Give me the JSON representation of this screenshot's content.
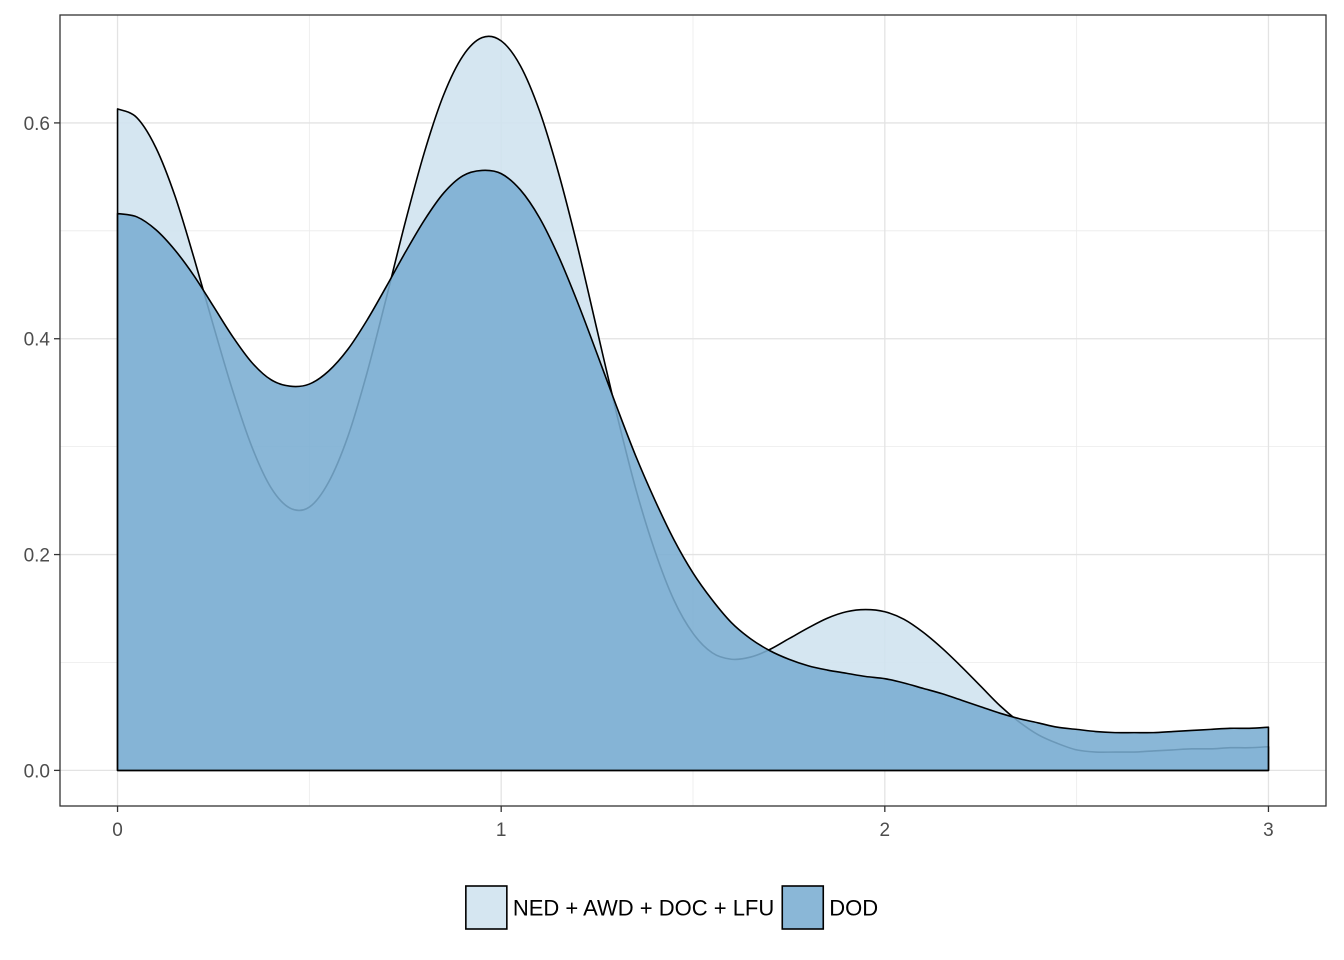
{
  "chart_data": {
    "type": "area",
    "xlim": [
      -0.15,
      3.15
    ],
    "ylim": [
      -0.033,
      0.7
    ],
    "x_ticks": [
      0,
      1,
      2,
      3
    ],
    "x_tick_labels": [
      "0",
      "1",
      "2",
      "3"
    ],
    "y_ticks": [
      0.0,
      0.2,
      0.4,
      0.6
    ],
    "y_tick_labels": [
      "0.0",
      "0.2",
      "0.4",
      "0.6"
    ],
    "grid": true,
    "legend_position": "bottom",
    "series": [
      {
        "name": "NED + AWD + DOC + LFU",
        "color": "#cfe2ef",
        "x": [
          0.0,
          0.05,
          0.1,
          0.15,
          0.2,
          0.25,
          0.3,
          0.35,
          0.4,
          0.45,
          0.5,
          0.55,
          0.6,
          0.65,
          0.7,
          0.75,
          0.8,
          0.85,
          0.9,
          0.95,
          1.0,
          1.05,
          1.1,
          1.15,
          1.2,
          1.25,
          1.3,
          1.35,
          1.4,
          1.45,
          1.5,
          1.55,
          1.6,
          1.65,
          1.7,
          1.75,
          1.8,
          1.85,
          1.9,
          1.95,
          2.0,
          2.05,
          2.1,
          2.15,
          2.2,
          2.25,
          2.3,
          2.35,
          2.4,
          2.45,
          2.5,
          2.55,
          2.6,
          2.65,
          2.7,
          2.75,
          2.8,
          2.85,
          2.9,
          2.95,
          3.0
        ],
        "values": [
          0.613,
          0.605,
          0.577,
          0.532,
          0.474,
          0.412,
          0.352,
          0.3,
          0.262,
          0.243,
          0.244,
          0.267,
          0.309,
          0.368,
          0.437,
          0.508,
          0.573,
          0.626,
          0.662,
          0.679,
          0.676,
          0.653,
          0.611,
          0.553,
          0.484,
          0.408,
          0.332,
          0.262,
          0.204,
          0.158,
          0.127,
          0.109,
          0.103,
          0.105,
          0.112,
          0.122,
          0.132,
          0.141,
          0.147,
          0.149,
          0.147,
          0.14,
          0.128,
          0.113,
          0.096,
          0.078,
          0.06,
          0.045,
          0.033,
          0.025,
          0.019,
          0.017,
          0.017,
          0.017,
          0.018,
          0.019,
          0.02,
          0.02,
          0.021,
          0.021,
          0.022
        ]
      },
      {
        "name": "DOD",
        "color": "#7aadd2",
        "x": [
          0.0,
          0.05,
          0.1,
          0.15,
          0.2,
          0.25,
          0.3,
          0.35,
          0.4,
          0.45,
          0.5,
          0.55,
          0.6,
          0.65,
          0.7,
          0.75,
          0.8,
          0.85,
          0.9,
          0.95,
          1.0,
          1.05,
          1.1,
          1.15,
          1.2,
          1.25,
          1.3,
          1.35,
          1.4,
          1.45,
          1.5,
          1.55,
          1.6,
          1.65,
          1.7,
          1.75,
          1.8,
          1.85,
          1.9,
          1.95,
          2.0,
          2.05,
          2.1,
          2.15,
          2.2,
          2.25,
          2.3,
          2.35,
          2.4,
          2.45,
          2.5,
          2.55,
          2.6,
          2.65,
          2.7,
          2.75,
          2.8,
          2.85,
          2.9,
          2.95,
          3.0
        ],
        "values": [
          0.516,
          0.513,
          0.501,
          0.482,
          0.458,
          0.43,
          0.402,
          0.378,
          0.362,
          0.356,
          0.358,
          0.37,
          0.39,
          0.417,
          0.448,
          0.48,
          0.51,
          0.535,
          0.551,
          0.556,
          0.553,
          0.538,
          0.512,
          0.476,
          0.433,
          0.386,
          0.338,
          0.292,
          0.251,
          0.214,
          0.183,
          0.158,
          0.137,
          0.122,
          0.111,
          0.103,
          0.097,
          0.093,
          0.09,
          0.087,
          0.085,
          0.081,
          0.076,
          0.071,
          0.065,
          0.059,
          0.053,
          0.048,
          0.044,
          0.04,
          0.038,
          0.036,
          0.035,
          0.035,
          0.035,
          0.036,
          0.037,
          0.038,
          0.039,
          0.039,
          0.04
        ]
      }
    ]
  }
}
